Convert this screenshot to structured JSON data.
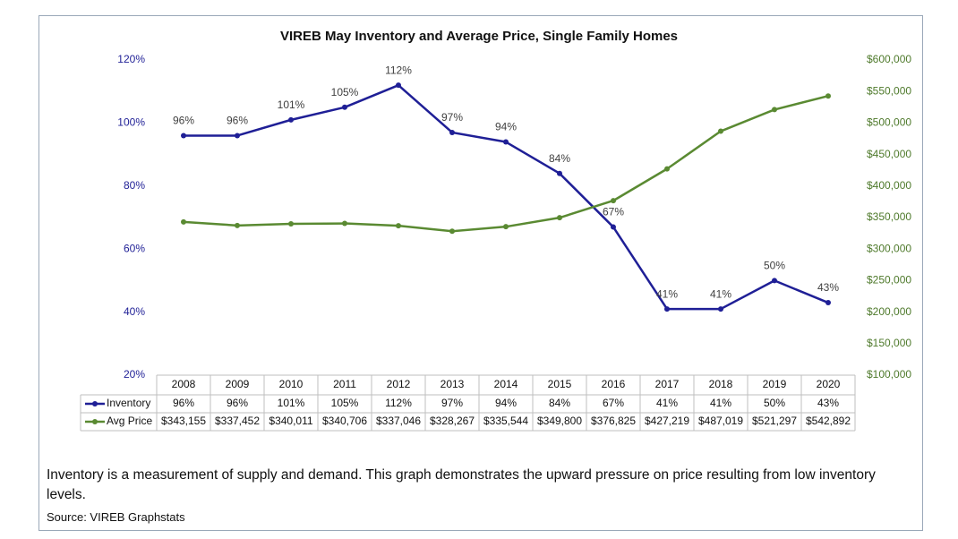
{
  "chart_data": {
    "type": "line",
    "title": "VIREB May Inventory and Average Price, Single Family Homes",
    "categories": [
      "2008",
      "2009",
      "2010",
      "2011",
      "2012",
      "2013",
      "2014",
      "2015",
      "2016",
      "2017",
      "2018",
      "2019",
      "2020"
    ],
    "series": [
      {
        "name": "Inventory",
        "color": "#1f1f96",
        "data_labels": true,
        "values": [
          96,
          96,
          101,
          105,
          112,
          97,
          94,
          84,
          67,
          41,
          41,
          50,
          43
        ],
        "value_labels": [
          "96%",
          "96%",
          "101%",
          "105%",
          "112%",
          "97%",
          "94%",
          "84%",
          "67%",
          "41%",
          "41%",
          "50%",
          "43%"
        ]
      },
      {
        "name": "Avg Price",
        "color": "#5a8a32",
        "axis": "y2",
        "data_labels": false,
        "values": [
          343155,
          337452,
          340011,
          340706,
          337046,
          328267,
          335544,
          349800,
          376825,
          427219,
          487019,
          521297,
          542892
        ],
        "value_labels": [
          "$343,155",
          "$337,452",
          "$340,011",
          "$340,706",
          "$337,046",
          "$328,267",
          "$335,544",
          "$349,800",
          "$376,825",
          "$427,219",
          "$487,019",
          "$521,297",
          "$542,892"
        ]
      }
    ],
    "ylim": [
      20,
      120
    ],
    "yticks": [
      {
        "value": 20,
        "label": "20%"
      },
      {
        "value": 40,
        "label": "40%"
      },
      {
        "value": 60,
        "label": "60%"
      },
      {
        "value": 80,
        "label": "80%"
      },
      {
        "value": 100,
        "label": "100%"
      },
      {
        "value": 120,
        "label": "120%"
      }
    ],
    "y2lim": [
      100000,
      600000
    ],
    "y2ticks": [
      {
        "value": 100000,
        "label": "$100,000"
      },
      {
        "value": 150000,
        "label": "$150,000"
      },
      {
        "value": 200000,
        "label": "$200,000"
      },
      {
        "value": 250000,
        "label": "$250,000"
      },
      {
        "value": 300000,
        "label": "$300,000"
      },
      {
        "value": 350000,
        "label": "$350,000"
      },
      {
        "value": 400000,
        "label": "$400,000"
      },
      {
        "value": 450000,
        "label": "$450,000"
      },
      {
        "value": 500000,
        "label": "$500,000"
      },
      {
        "value": 550000,
        "label": "$550,000"
      },
      {
        "value": 600000,
        "label": "$600,000"
      }
    ],
    "data_table": true
  },
  "note": "Inventory is a measurement of supply and demand.  This graph demonstrates the upward pressure on price resulting from low inventory levels.",
  "source": "Source: VIREB Graphstats"
}
